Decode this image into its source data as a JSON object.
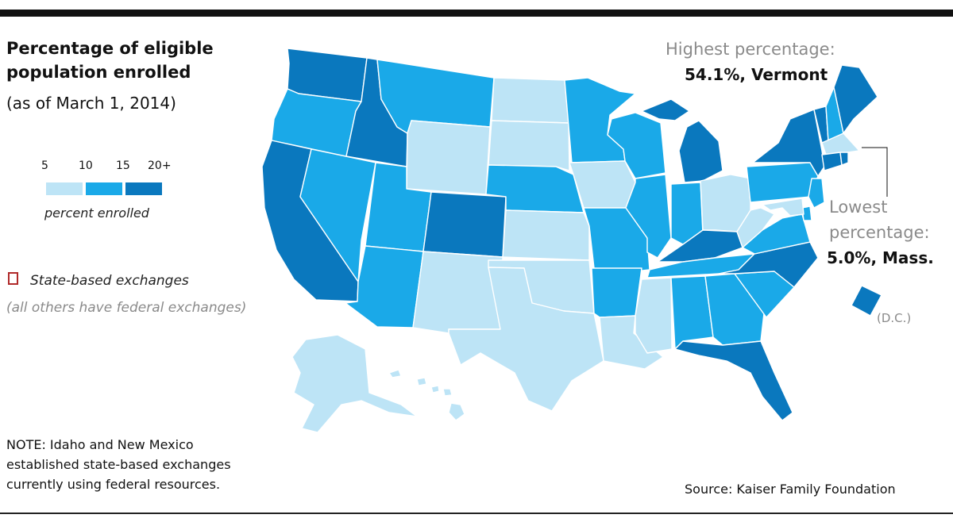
{
  "title": "Percentage of eligible population enrolled",
  "subtitle": "(as of March 1, 2014)",
  "legend": {
    "ticks": [
      "5",
      "10",
      "15",
      "20+"
    ],
    "caption": "percent enrolled",
    "colors": [
      "#bde4f6",
      "#1aa9e8",
      "#0a78be"
    ]
  },
  "state_based": {
    "label": "State-based exchanges",
    "others": "(all others have federal exchanges)",
    "border_color": "#b02a2a"
  },
  "highest": {
    "label": "Highest percentage:",
    "value": "54.1%, Vermont"
  },
  "lowest": {
    "label_line1": "Lowest",
    "label_line2": "percentage:",
    "value": "5.0%, Mass."
  },
  "dc_label": "(D.C.)",
  "note": "NOTE: Idaho and New Mexico established state-based exchanges currently using federal resources.",
  "source": "Source: Kaiser Family Foundation",
  "colors": {
    "light": "#bde4f6",
    "medium": "#1aa9e8",
    "dark": "#0a78be",
    "state_border": "#b02a2a"
  },
  "states": [
    {
      "id": "WA",
      "tier": "dark",
      "state_based": true
    },
    {
      "id": "OR",
      "tier": "medium",
      "state_based": true
    },
    {
      "id": "CA",
      "tier": "dark",
      "state_based": true
    },
    {
      "id": "ID",
      "tier": "dark",
      "state_based": true
    },
    {
      "id": "NV",
      "tier": "medium",
      "state_based": true
    },
    {
      "id": "MT",
      "tier": "medium",
      "state_based": false
    },
    {
      "id": "WY",
      "tier": "light",
      "state_based": false
    },
    {
      "id": "UT",
      "tier": "medium",
      "state_based": false
    },
    {
      "id": "AZ",
      "tier": "medium",
      "state_based": false
    },
    {
      "id": "CO",
      "tier": "dark",
      "state_based": true
    },
    {
      "id": "NM",
      "tier": "light",
      "state_based": false
    },
    {
      "id": "ND",
      "tier": "light",
      "state_based": false
    },
    {
      "id": "SD",
      "tier": "light",
      "state_based": false
    },
    {
      "id": "NE",
      "tier": "medium",
      "state_based": false
    },
    {
      "id": "KS",
      "tier": "light",
      "state_based": false
    },
    {
      "id": "OK",
      "tier": "light",
      "state_based": false
    },
    {
      "id": "TX",
      "tier": "light",
      "state_based": false
    },
    {
      "id": "MN",
      "tier": "medium",
      "state_based": true
    },
    {
      "id": "IA",
      "tier": "light",
      "state_based": false
    },
    {
      "id": "MO",
      "tier": "medium",
      "state_based": false
    },
    {
      "id": "AR",
      "tier": "medium",
      "state_based": false
    },
    {
      "id": "LA",
      "tier": "light",
      "state_based": false
    },
    {
      "id": "WI",
      "tier": "medium",
      "state_based": false
    },
    {
      "id": "IL",
      "tier": "medium",
      "state_based": false
    },
    {
      "id": "MI",
      "tier": "dark",
      "state_based": false
    },
    {
      "id": "IN",
      "tier": "medium",
      "state_based": false
    },
    {
      "id": "OH",
      "tier": "light",
      "state_based": false
    },
    {
      "id": "KY",
      "tier": "dark",
      "state_based": true
    },
    {
      "id": "TN",
      "tier": "medium",
      "state_based": false
    },
    {
      "id": "MS",
      "tier": "light",
      "state_based": false
    },
    {
      "id": "AL",
      "tier": "medium",
      "state_based": false
    },
    {
      "id": "GA",
      "tier": "medium",
      "state_based": false
    },
    {
      "id": "FL",
      "tier": "dark",
      "state_based": false
    },
    {
      "id": "SC",
      "tier": "medium",
      "state_based": false
    },
    {
      "id": "NC",
      "tier": "dark",
      "state_based": false
    },
    {
      "id": "VA",
      "tier": "medium",
      "state_based": false
    },
    {
      "id": "WV",
      "tier": "light",
      "state_based": false
    },
    {
      "id": "PA",
      "tier": "medium",
      "state_based": false
    },
    {
      "id": "NY",
      "tier": "dark",
      "state_based": true
    },
    {
      "id": "VT",
      "tier": "dark",
      "state_based": true
    },
    {
      "id": "NH",
      "tier": "medium",
      "state_based": false
    },
    {
      "id": "ME",
      "tier": "dark",
      "state_based": false
    },
    {
      "id": "MA",
      "tier": "light",
      "state_based": true
    },
    {
      "id": "RI",
      "tier": "dark",
      "state_based": true
    },
    {
      "id": "CT",
      "tier": "dark",
      "state_based": true
    },
    {
      "id": "NJ",
      "tier": "medium",
      "state_based": false
    },
    {
      "id": "DE",
      "tier": "medium",
      "state_based": false
    },
    {
      "id": "MD",
      "tier": "light",
      "state_based": true
    },
    {
      "id": "DC",
      "tier": "dark",
      "state_based": true
    },
    {
      "id": "AK",
      "tier": "light",
      "state_based": false
    },
    {
      "id": "HI",
      "tier": "light",
      "state_based": true
    }
  ]
}
